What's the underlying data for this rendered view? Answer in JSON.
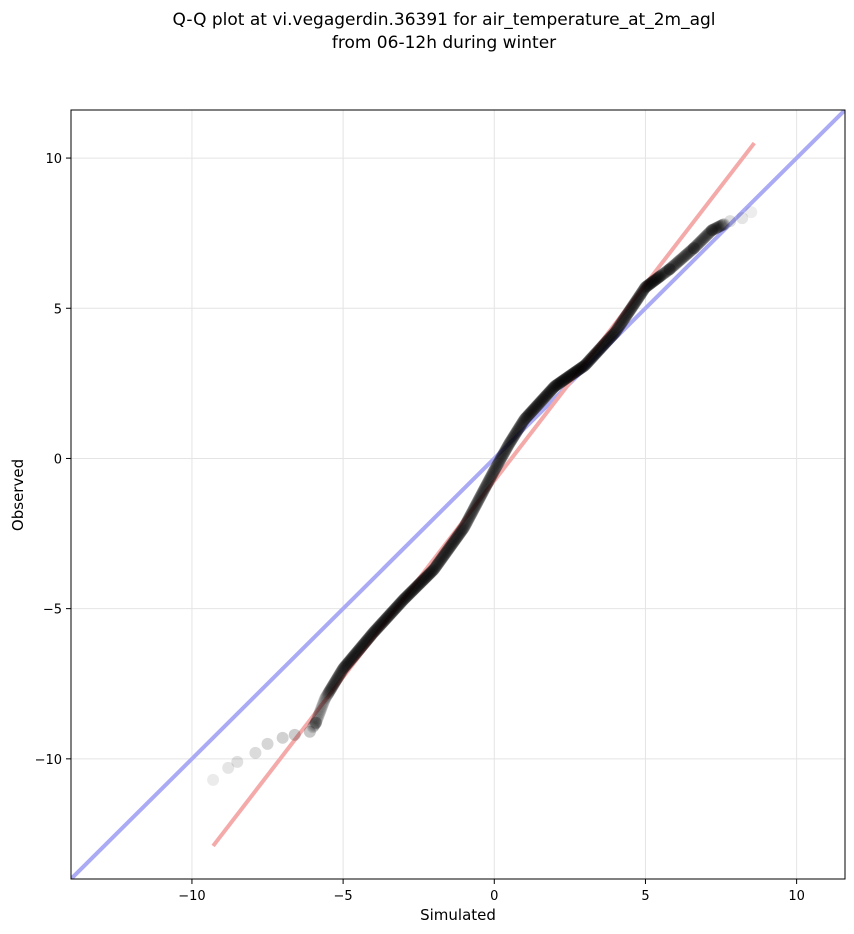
{
  "chart_data": {
    "type": "scatter",
    "title_lines": [
      "Q-Q plot at vi.vegagerdin.36391 for air_temperature_at_2m_agl",
      "from 06-12h during winter"
    ],
    "xlabel": "Simulated",
    "ylabel": "Observed",
    "xlim": [
      -14.0,
      11.6
    ],
    "ylim": [
      -14.0,
      11.6
    ],
    "xticks": [
      -10,
      -5,
      0,
      5,
      10
    ],
    "xtick_labels": [
      "−10",
      "−5",
      "0",
      "5",
      "10"
    ],
    "yticks": [
      -10,
      -5,
      0,
      5,
      10
    ],
    "ytick_labels": [
      "−10",
      "−5",
      "0",
      "5",
      "10"
    ],
    "grid": true,
    "reference_lines": [
      {
        "kind": "identity",
        "color": "#aaaaf5",
        "x": [
          -14.0,
          11.6
        ],
        "y": [
          -14.0,
          11.6
        ]
      },
      {
        "kind": "fit",
        "color": "#f5aaaa",
        "x": [
          -9.3,
          8.6
        ],
        "y": [
          -12.9,
          10.5
        ]
      }
    ],
    "point_color": "#000000",
    "quantile_anchors": {
      "x": [
        -9.3,
        -8.8,
        -8.5,
        -7.9,
        -7.5,
        -7.0,
        -6.6,
        -6.1,
        -5.9,
        -5.6,
        -5.0,
        -4.0,
        -3.0,
        -2.0,
        -1.0,
        0.0,
        0.5,
        1.0,
        2.0,
        3.0,
        4.0,
        5.0,
        5.8,
        6.6,
        7.2,
        7.8,
        8.2,
        8.5
      ],
      "y": [
        -10.7,
        -10.3,
        -10.1,
        -9.8,
        -9.5,
        -9.3,
        -9.2,
        -9.1,
        -8.8,
        -8.0,
        -7.0,
        -5.8,
        -4.7,
        -3.7,
        -2.3,
        -0.4,
        0.5,
        1.3,
        2.4,
        3.1,
        4.2,
        5.7,
        6.3,
        7.0,
        7.6,
        7.9,
        8.0,
        8.2
      ]
    }
  }
}
